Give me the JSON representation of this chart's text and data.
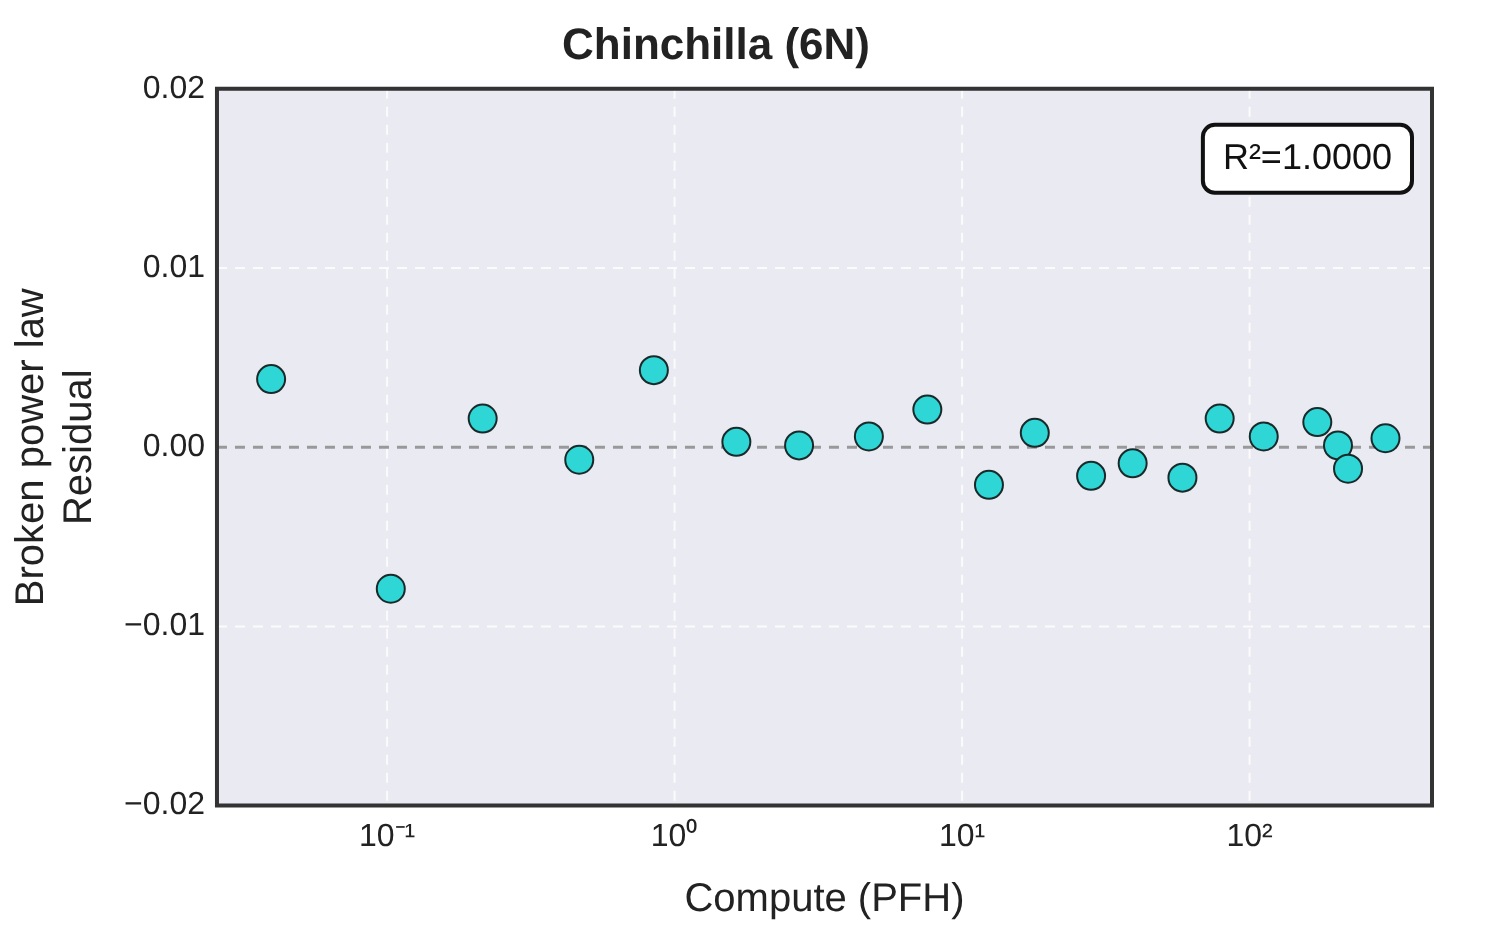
{
  "chart_data": {
    "type": "scatter",
    "title": "Chinchilla (6N)",
    "xlabel": "Compute (PFH)",
    "ylabel": "Broken power law\nResidual",
    "annotations": [
      "R²=1.0000"
    ],
    "x": [
      0.0395,
      0.103,
      0.215,
      0.466,
      0.847,
      1.64,
      2.71,
      4.74,
      7.57,
      12.4,
      17.9,
      28.1,
      39.2,
      58.4,
      78.7,
      112,
      172,
      203,
      220,
      297
    ],
    "series": [
      {
        "color": "#2ed6d6",
        "values": [
          0.0038,
          -0.0079,
          0.0016,
          -0.0007,
          0.0043,
          0.0003,
          0.0001,
          0.0006,
          0.0021,
          -0.0021,
          0.0008,
          -0.0016,
          -0.0009,
          -0.0017,
          0.0016,
          0.0006,
          0.0014,
          0.0001,
          -0.0012,
          0.0005
        ]
      }
    ],
    "log": "x",
    "xlim": [
      0.0256,
      431
    ],
    "xticks": [
      {
        "value": 0.1,
        "label": "10⁻¹"
      },
      {
        "value": 1,
        "label": "10⁰"
      },
      {
        "value": 10,
        "label": "10¹"
      },
      {
        "value": 100,
        "label": "10²"
      }
    ],
    "ylim": [
      -0.02,
      0.02
    ],
    "yticks": [
      {
        "value": -0.02,
        "label": "−0.02"
      },
      {
        "value": -0.01,
        "label": "−0.01"
      },
      {
        "value": 0,
        "label": "0.00"
      },
      {
        "value": 0.01,
        "label": "0.01"
      },
      {
        "value": 0.02,
        "label": "0.02"
      }
    ],
    "ref_lines": [
      {
        "axis": "y",
        "value": 0,
        "color": "#999999",
        "line_style": "dashed"
      }
    ],
    "grid": true,
    "legend": false,
    "marker": "circle"
  }
}
